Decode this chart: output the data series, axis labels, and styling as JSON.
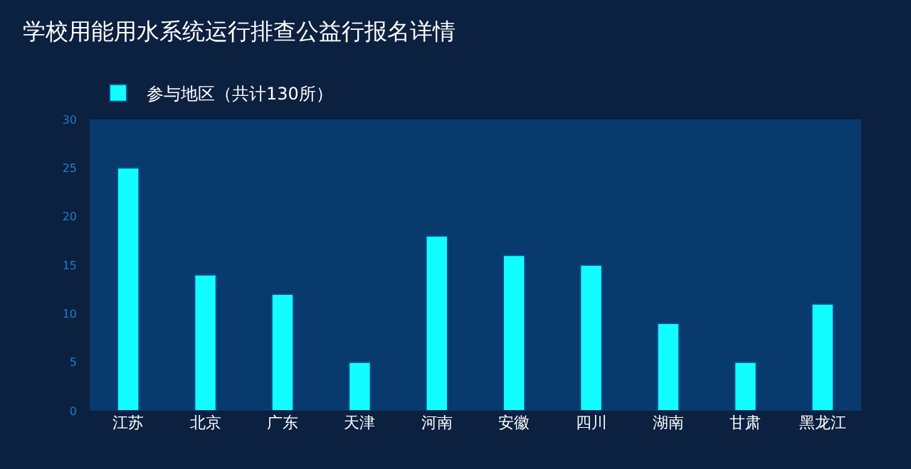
{
  "chart_data": {
    "type": "bar",
    "title": "学校用能用水系统运行排查公益行报名详情",
    "categories": [
      "江苏",
      "北京",
      "广东",
      "天津",
      "河南",
      "安徽",
      "四川",
      "湖南",
      "甘肃",
      "黑龙江"
    ],
    "series": [
      {
        "name": "参与地区（共计130所）",
        "color": "#12fdff",
        "values": [
          25,
          14,
          12,
          5,
          18,
          16,
          15,
          9,
          5,
          11
        ]
      }
    ],
    "ylim": [
      0,
      30
    ],
    "yticks": [
      0,
      5,
      10,
      15,
      20,
      25,
      30
    ],
    "grid": false,
    "legend": "top left"
  }
}
